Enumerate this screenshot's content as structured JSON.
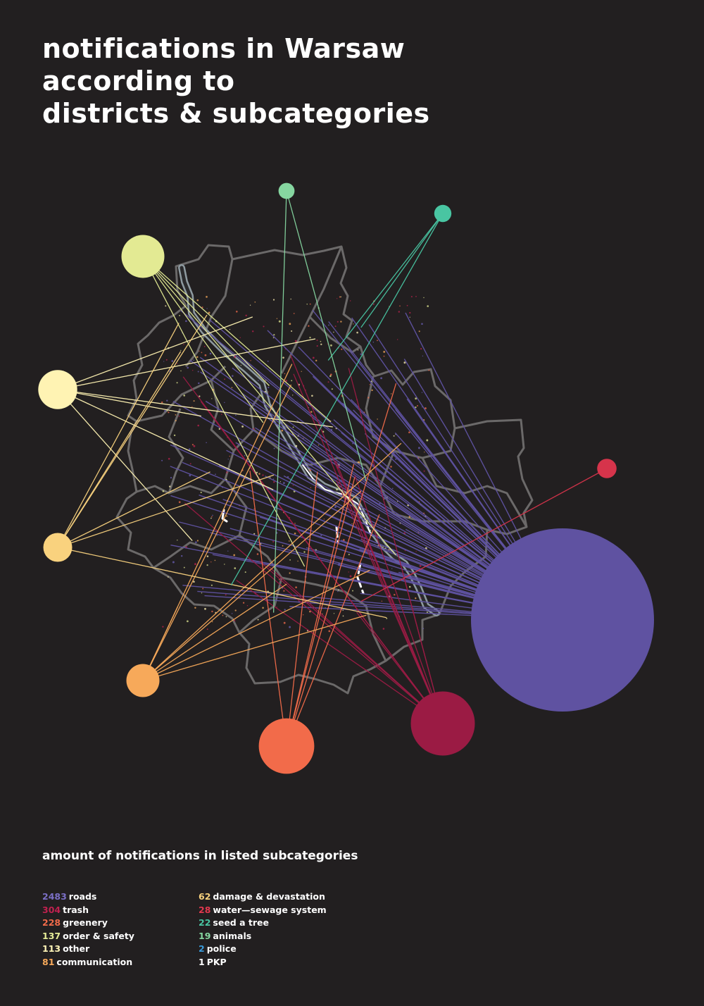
{
  "title": {
    "lines": [
      "notifications in Warsaw",
      "according to",
      "districts & subcategories"
    ]
  },
  "legend": {
    "heading": "amount of notifications in listed subcategories",
    "col1": [
      {
        "count": "2483",
        "label": "roads",
        "color": "#7b6fc6"
      },
      {
        "count": "304",
        "label": "trash",
        "color": "#c0214f"
      },
      {
        "count": "228",
        "label": "greenery",
        "color": "#f26b4a"
      },
      {
        "count": "137",
        "label": "order & safety",
        "color": "#e6ec97"
      },
      {
        "count": "113",
        "label": "other",
        "color": "#fff5b8"
      },
      {
        "count": "81",
        "label": "communication",
        "color": "#f7a95a"
      }
    ],
    "col2": [
      {
        "count": "62",
        "label": "damage & devastation",
        "color": "#f9d27e"
      },
      {
        "count": "28",
        "label": "water—sewage system",
        "color": "#e0384e"
      },
      {
        "count": "22",
        "label": "seed a tree",
        "color": "#49c5a2"
      },
      {
        "count": "19",
        "label": "animals",
        "color": "#86d6a0"
      },
      {
        "count": "2",
        "label": "police",
        "color": "#3a9ad9"
      },
      {
        "count": "1",
        "label": "PKP",
        "color": "#ffffff"
      }
    ]
  },
  "categories": [
    {
      "label": "roads",
      "value": 2483,
      "color": "#5f52a1"
    },
    {
      "label": "trash",
      "value": 304,
      "color": "#9b1b44"
    },
    {
      "label": "greenery",
      "value": 228,
      "color": "#f26b4a"
    },
    {
      "label": "order & safety",
      "value": 137,
      "color": "#e3ea93"
    },
    {
      "label": "other",
      "value": 113,
      "color": "#fff3b3"
    },
    {
      "label": "communication",
      "value": 81,
      "color": "#f7a95a"
    },
    {
      "label": "damage & devastation",
      "value": 62,
      "color": "#f9d27e"
    },
    {
      "label": "water—sewage system",
      "value": 28,
      "color": "#d6344b"
    },
    {
      "label": "seed a tree",
      "value": 22,
      "color": "#49c5a2"
    },
    {
      "label": "animals",
      "value": 19,
      "color": "#86d6a0"
    }
  ],
  "map": {
    "boundary_color": "#6b6969",
    "river_color": "#ffffff"
  }
}
